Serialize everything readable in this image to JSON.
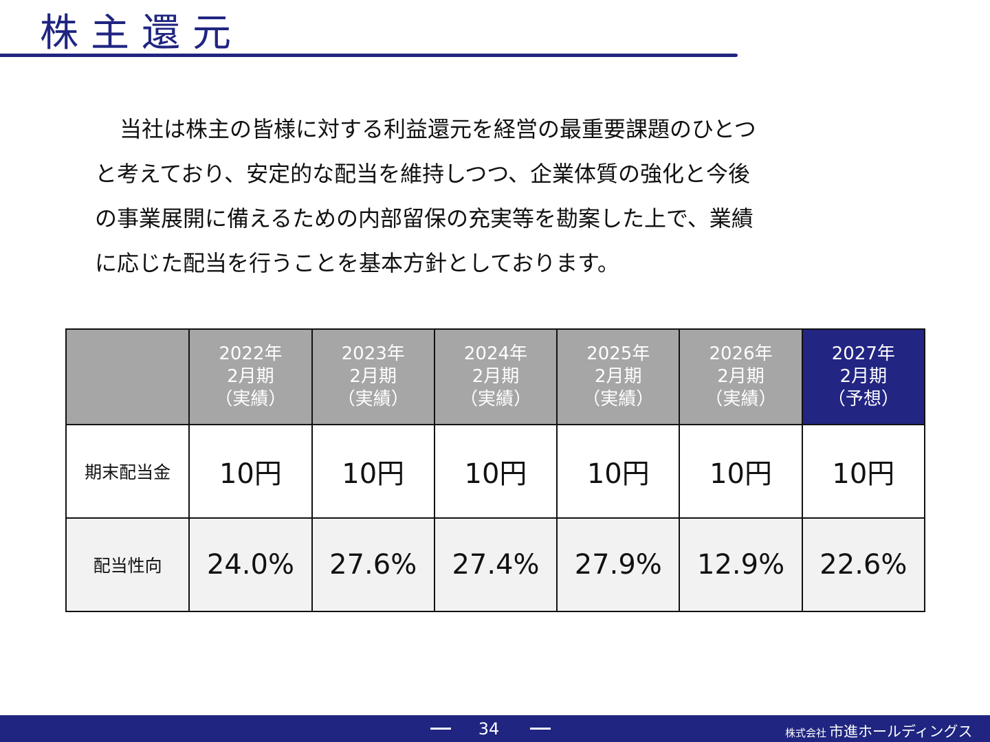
{
  "header": {
    "title": "株主還元"
  },
  "intro": {
    "lines": [
      "当社は株主の皆様に対する利益還元を経営の最重要課題のひとつ",
      "と考えており、安定的な配当を維持しつつ、企業体質の強化と今後",
      "の事業展開に備えるための内部留保の充実等を勘案した上で、業績",
      "に応じた配当を行うことを基本方針としております。"
    ]
  },
  "table": {
    "columns": [
      {
        "year": "2022年",
        "period": "2月期",
        "kind": "（実績）"
      },
      {
        "year": "2023年",
        "period": "2月期",
        "kind": "（実績）"
      },
      {
        "year": "2024年",
        "period": "2月期",
        "kind": "（実績）"
      },
      {
        "year": "2025年",
        "period": "2月期",
        "kind": "（実績）"
      },
      {
        "year": "2026年",
        "period": "2月期",
        "kind": "（実績）"
      },
      {
        "year": "2027年",
        "period": "2月期",
        "kind": "（予想）"
      }
    ],
    "rows": [
      {
        "label": "期末配当金",
        "values": [
          "10円",
          "10円",
          "10円",
          "10円",
          "10円",
          "10円"
        ]
      },
      {
        "label": "配当性向",
        "values": [
          "24.0%",
          "27.6%",
          "27.4%",
          "27.9%",
          "12.9%",
          "22.6%"
        ]
      }
    ]
  },
  "footer": {
    "page_number": "34",
    "company_prefix": "株式会社",
    "company_name": "市進ホールディングス"
  },
  "colors": {
    "brand_navy": "#1f2580",
    "header_gray": "#a6a6a6",
    "forecast_navy": "#232583",
    "alt_row": "#f2f2f2"
  }
}
